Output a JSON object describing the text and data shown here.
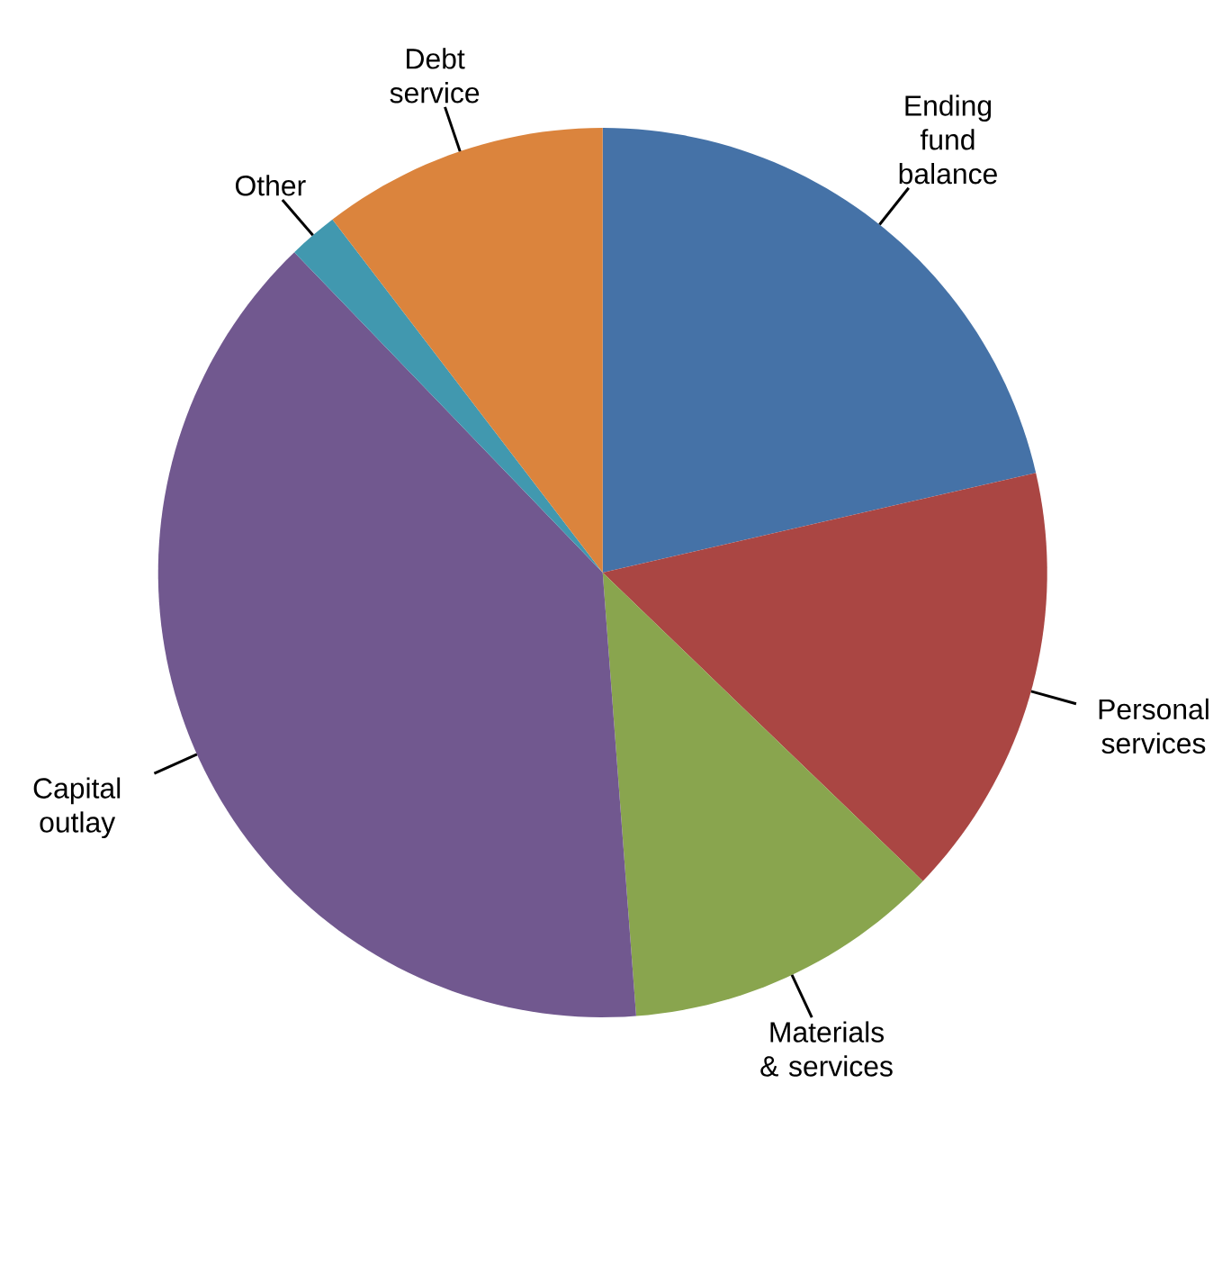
{
  "chart_data": {
    "type": "pie",
    "categories": [
      "Ending fund balance",
      "Personal services",
      "Materials & services",
      "Capital outlay",
      "Other",
      "Debt service"
    ],
    "values": [
      21.4,
      15.8,
      11.6,
      39.0,
      1.8,
      10.4
    ],
    "colors": [
      "#4572a7",
      "#aa4643",
      "#89a54e",
      "#71588f",
      "#4198af",
      "#db843d"
    ]
  }
}
